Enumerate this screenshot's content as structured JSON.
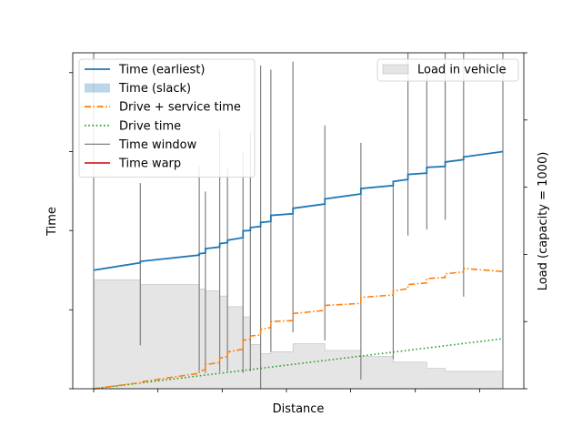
{
  "chart_data": {
    "type": "line",
    "xlabel": "Distance",
    "ylabel": "Time",
    "y2label": "Load (capacity = 1000)",
    "xlim": [
      0,
      1000
    ],
    "ylim": [
      0,
      1000
    ],
    "y2lim": [
      0,
      1000
    ],
    "x_tick_values": [
      0,
      157,
      314,
      471,
      628,
      786,
      943
    ],
    "y_tick_values": [
      0,
      235,
      471,
      706,
      941
    ],
    "y2_tick_values": [
      0,
      200,
      400,
      600,
      800,
      1000
    ],
    "tick_labels_shown": false,
    "legend_placement": "upper left",
    "legend2_placement": "upper right",
    "colors": {
      "earliest": "#1f77b4",
      "slack": "#1f77b4",
      "drive_service": "#ff7f0e",
      "drive": "#2ca02c",
      "window": "#808080",
      "warp": "#d62728",
      "load": "#d3d3d3"
    },
    "legend": [
      {
        "key": "earliest",
        "label": "Time (earliest)",
        "style": "line"
      },
      {
        "key": "slack",
        "label": "Time (slack)",
        "style": "patch"
      },
      {
        "key": "drive_service",
        "label": "Drive + service time",
        "style": "dashdot"
      },
      {
        "key": "drive",
        "label": "Drive time",
        "style": "dotted"
      },
      {
        "key": "window",
        "label": "Time window",
        "style": "thin"
      },
      {
        "key": "warp",
        "label": "Time warp",
        "style": "line"
      }
    ],
    "legend2": [
      {
        "key": "load",
        "label": "Load in vehicle",
        "style": "patch"
      }
    ],
    "stops": [
      {
        "x": 0,
        "earliest_before": 353,
        "earliest_after": 353,
        "drive_service_before": 0,
        "drive_service_after": 0,
        "window": [
          0,
          1000
        ],
        "load": 324
      },
      {
        "x": 114,
        "earliest_before": 375,
        "earliest_after": 379,
        "drive_service_before": 18,
        "drive_service_after": 20,
        "window": [
          129,
          612
        ],
        "load": 310
      },
      {
        "x": 258,
        "earliest_before": 398,
        "earliest_after": 402,
        "drive_service_before": 46,
        "drive_service_after": 51,
        "window": [
          53,
          661
        ],
        "load": 297
      },
      {
        "x": 273,
        "earliest_before": 404,
        "earliest_after": 417,
        "drive_service_before": 58,
        "drive_service_after": 72,
        "window": [
          47,
          587
        ],
        "load": 292
      },
      {
        "x": 308,
        "earliest_before": 422,
        "earliest_after": 432,
        "drive_service_before": 78,
        "drive_service_after": 91,
        "window": [
          50,
          772
        ],
        "load": 276
      },
      {
        "x": 327,
        "earliest_before": 435,
        "earliest_after": 442,
        "drive_service_before": 96,
        "drive_service_after": 109,
        "window": [
          53,
          657
        ],
        "load": 244
      },
      {
        "x": 365,
        "earliest_before": 450,
        "earliest_after": 470,
        "drive_service_before": 118,
        "drive_service_after": 144,
        "window": [
          47,
          703
        ],
        "load": 214
      },
      {
        "x": 383,
        "earliest_before": 471,
        "earliest_after": 480,
        "drive_service_before": 147,
        "drive_service_after": 157,
        "window": [
          52,
          765
        ],
        "load": 132
      },
      {
        "x": 408,
        "earliest_before": 483,
        "earliest_after": 495,
        "drive_service_before": 160,
        "drive_service_after": 177,
        "window": [
          0,
          962
        ],
        "load": 105
      },
      {
        "x": 433,
        "earliest_before": 498,
        "earliest_after": 516,
        "drive_service_before": 182,
        "drive_service_after": 200,
        "window": [
          110,
          950
        ],
        "load": 110
      },
      {
        "x": 487,
        "earliest_before": 521,
        "earliest_after": 537,
        "drive_service_before": 203,
        "drive_service_after": 224,
        "window": [
          168,
          974
        ],
        "load": 134
      },
      {
        "x": 565,
        "earliest_before": 550,
        "earliest_after": 565,
        "drive_service_before": 233,
        "drive_service_after": 248,
        "window": [
          144,
          784
        ],
        "load": 114
      },
      {
        "x": 653,
        "earliest_before": 580,
        "earliest_after": 596,
        "drive_service_before": 254,
        "drive_service_after": 272,
        "window": [
          27,
          732
        ],
        "load": 96
      },
      {
        "x": 732,
        "earliest_before": 605,
        "earliest_after": 617,
        "drive_service_before": 279,
        "drive_service_after": 291,
        "window": [
          88,
          617
        ],
        "load": 79
      },
      {
        "x": 768,
        "earliest_before": 623,
        "earliest_after": 638,
        "drive_service_before": 298,
        "drive_service_after": 310,
        "window": [
          456,
          1000
        ],
        "load": 79
      },
      {
        "x": 814,
        "earliest_before": 642,
        "earliest_after": 659,
        "drive_service_before": 315,
        "drive_service_after": 328,
        "window": [
          474,
          941
        ],
        "load": 61
      },
      {
        "x": 859,
        "earliest_before": 662,
        "earliest_after": 675,
        "drive_service_before": 331,
        "drive_service_after": 342,
        "window": [
          503,
          1000
        ],
        "load": 52
      },
      {
        "x": 904,
        "earliest_before": 682,
        "earliest_after": 690,
        "drive_service_before": 348,
        "drive_service_after": 358,
        "window": [
          274,
          1000
        ],
        "load": 52
      },
      {
        "x": 1000,
        "earliest_before": 706,
        "earliest_after": 706,
        "drive_service_before": 349,
        "drive_service_after": 349,
        "window": [
          0,
          1000
        ],
        "load": 52
      }
    ],
    "drive_time": [
      [
        0,
        0
      ],
      [
        1000,
        149
      ]
    ]
  }
}
